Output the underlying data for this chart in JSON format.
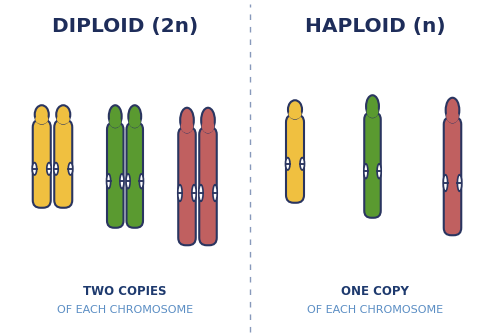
{
  "title_left": "DIPLOID (2n)",
  "title_right": "HAPLOID (n)",
  "subtitle_left_line1": "TWO COPIES",
  "subtitle_left_line2": "OF EACH CHROMOSOME",
  "subtitle_right_line1": "ONE COPY",
  "subtitle_right_line2": "OF EACH CHROMOSOME",
  "bg_color": "#ffffff",
  "title_color": "#1e2d5a",
  "subtitle_bold_color": "#1e3a6e",
  "subtitle_light_color": "#5b8ec4",
  "divider_color": "#8899bb",
  "outline_color": "#2a3560",
  "chrom_yellow": "#f0c040",
  "chrom_yellow_light": "#f8dc80",
  "chrom_green": "#5a9a30",
  "chrom_green_light": "#88c050",
  "chrom_red": "#c06060",
  "chrom_red_light": "#d89090",
  "figsize": [
    5.0,
    3.34
  ],
  "dpi": 100
}
